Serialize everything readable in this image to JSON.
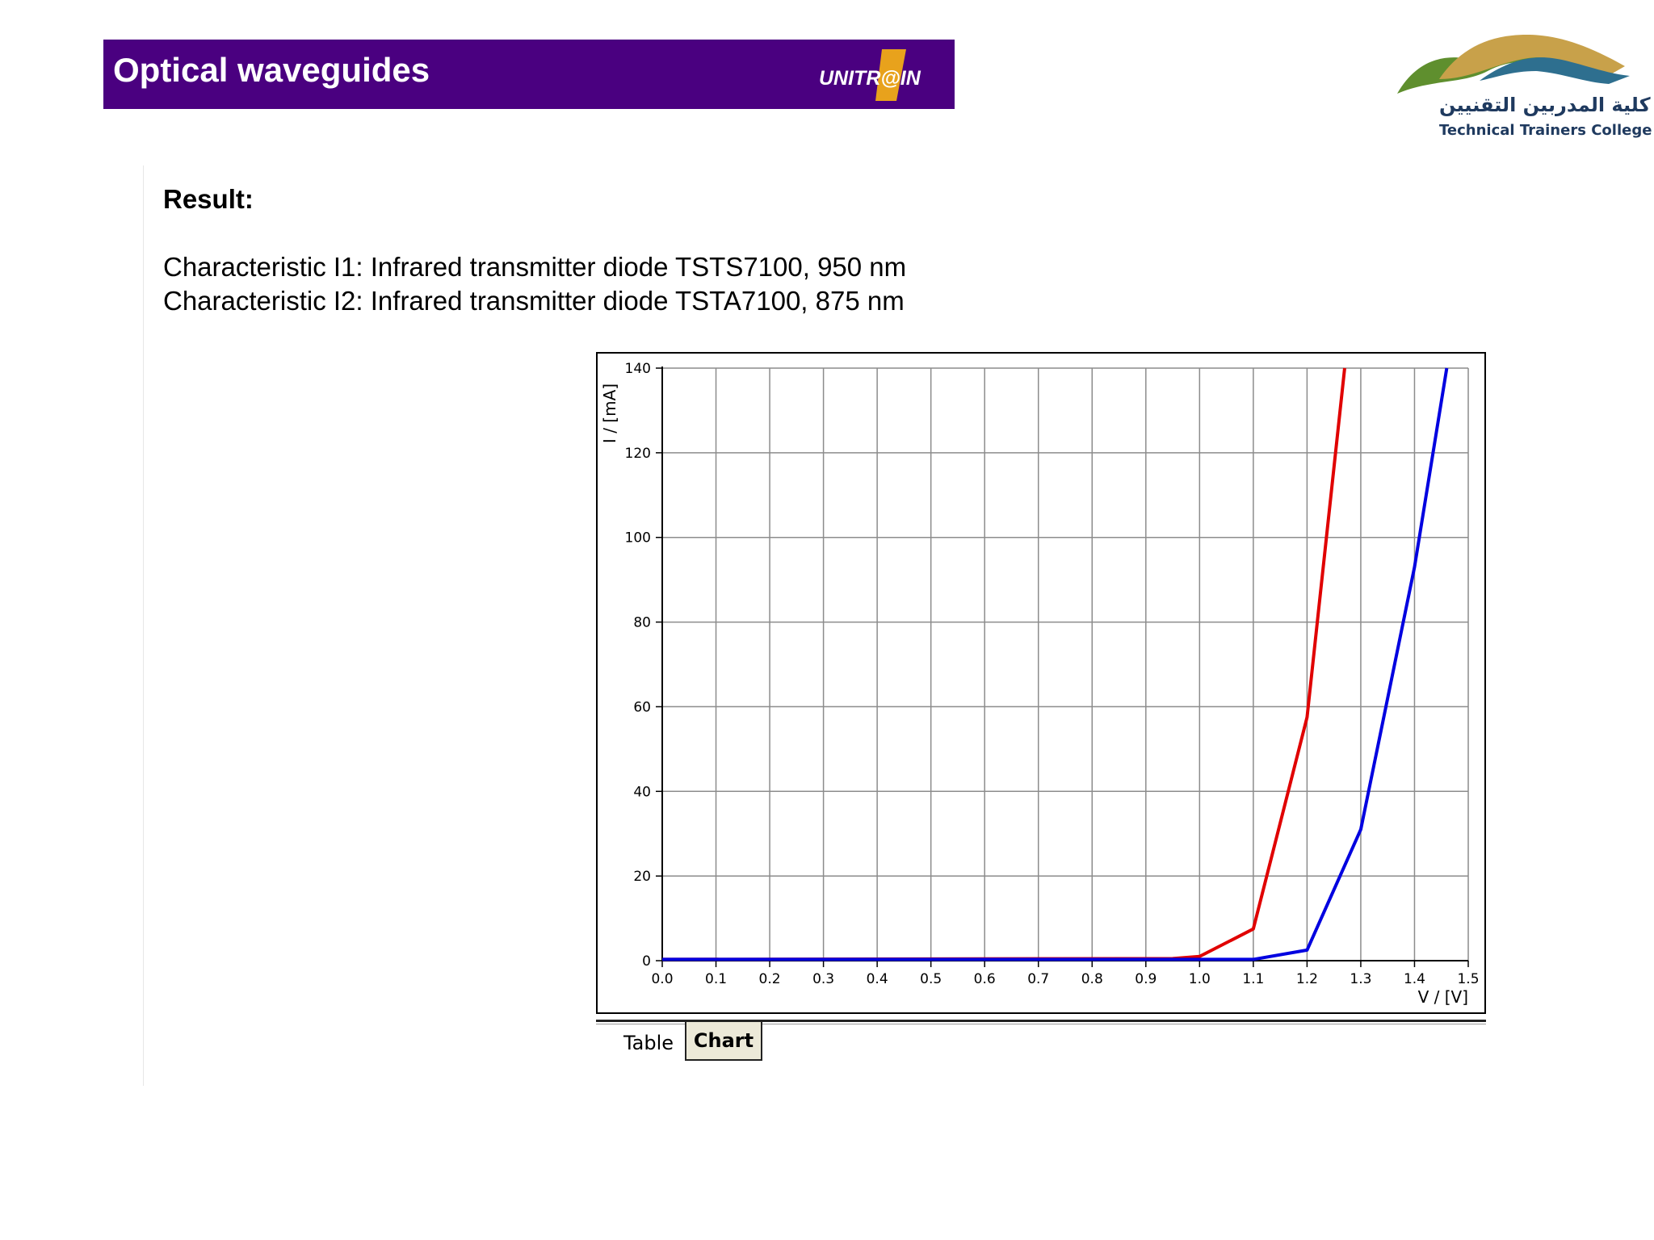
{
  "header": {
    "title": "Optical waveguides",
    "logo_text": "UNITR@IN",
    "background_color": "#4a0080"
  },
  "college": {
    "arabic_name": "كلية المدربين التقنيين",
    "english_name": "Technical Trainers College"
  },
  "content": {
    "heading": "Result:",
    "line1": "Characteristic I1: Infrared transmitter diode TSTS7100, 950 nm",
    "line2": "Characteristic I2: Infrared transmitter diode TSTA7100, 875 nm"
  },
  "tabs": {
    "table_label": "Table",
    "chart_label": "Chart",
    "active": "Chart"
  },
  "chart_data": {
    "type": "line",
    "ylabel": "I / [mA]",
    "xlabel": "V / [V]",
    "xlim": [
      0.0,
      1.5
    ],
    "ylim": [
      0,
      140
    ],
    "x_ticks": [
      0.0,
      0.1,
      0.2,
      0.3,
      0.4,
      0.5,
      0.6,
      0.7,
      0.8,
      0.9,
      1.0,
      1.1,
      1.2,
      1.3,
      1.4,
      1.5
    ],
    "x_tick_labels": [
      "0.0",
      "0.1",
      "0.2",
      "0.3",
      "0.4",
      "0.5",
      "0.6",
      "0.7",
      "0.8",
      "0.9",
      "1.0",
      "1.1",
      "1.2",
      "1.3",
      "1.4",
      "1.5"
    ],
    "y_ticks": [
      0,
      20,
      40,
      60,
      80,
      100,
      120,
      140
    ],
    "y_tick_labels": [
      "0",
      "20",
      "40",
      "60",
      "80",
      "100",
      "120",
      "140"
    ],
    "grid": true,
    "series": [
      {
        "color": "#e00000",
        "x": [
          0.0,
          0.95,
          1.0,
          1.1,
          1.2,
          1.27
        ],
        "y": [
          0.3,
          0.5,
          1.0,
          7.5,
          57.5,
          140
        ]
      },
      {
        "color": "#0000e0",
        "x": [
          0.0,
          1.1,
          1.2,
          1.3,
          1.4,
          1.46
        ],
        "y": [
          0.3,
          0.3,
          2.5,
          31.0,
          93.0,
          140
        ]
      }
    ]
  }
}
